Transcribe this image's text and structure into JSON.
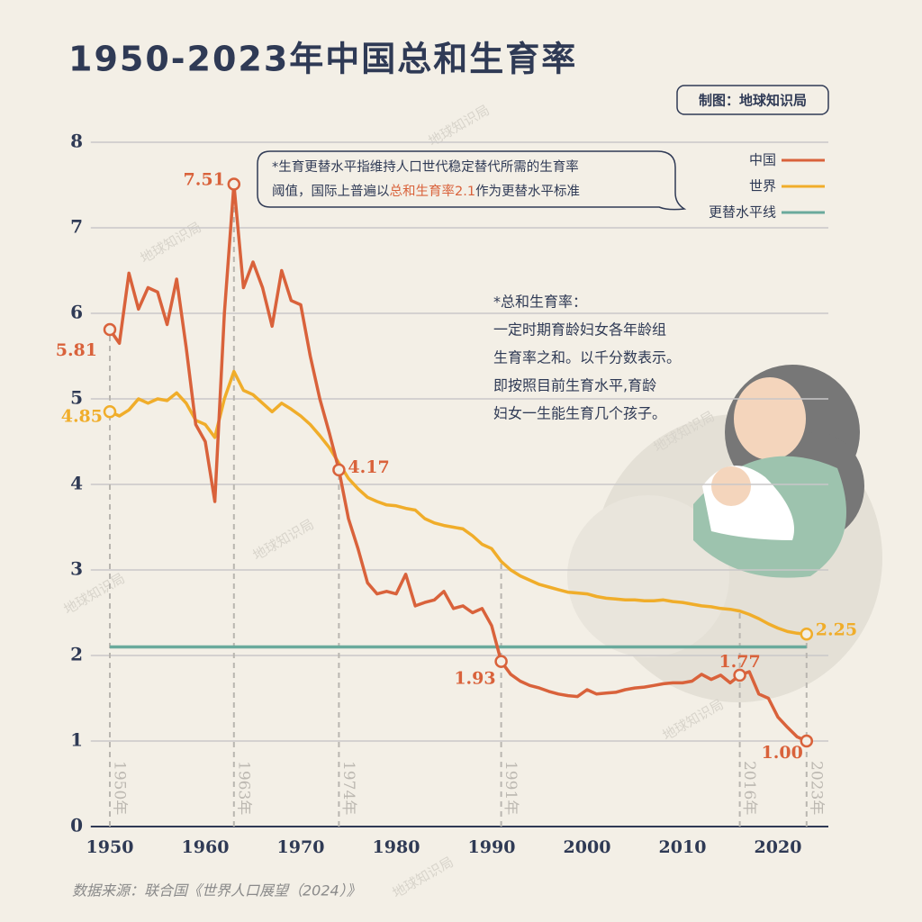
{
  "chart_data": {
    "type": "line",
    "title": "1950-2023年中国总和生育率",
    "credit": "制图：地球知识局",
    "source": "数据来源：联合国《世界人口展望（2024）》",
    "watermark": "地球知识局",
    "note": [
      "*生育更替水平指维持人口世代稳定替代所需的生育率",
      "阈值，国际上普遍以",
      "总和生育率2.1",
      "作为更替水平标准"
    ],
    "definition": [
      "*总和生育率：",
      "一定时期育龄妇女各年龄组",
      "生育率之和。以千分数表示。",
      "即按照目前生育水平,育龄",
      "妇女一生能生育几个孩子。"
    ],
    "x": [
      1950,
      1951,
      1952,
      1953,
      1954,
      1955,
      1956,
      1957,
      1958,
      1959,
      1960,
      1961,
      1962,
      1963,
      1964,
      1965,
      1966,
      1967,
      1968,
      1969,
      1970,
      1971,
      1972,
      1973,
      1974,
      1975,
      1976,
      1977,
      1978,
      1979,
      1980,
      1981,
      1982,
      1983,
      1984,
      1985,
      1986,
      1987,
      1988,
      1989,
      1990,
      1991,
      1992,
      1993,
      1994,
      1995,
      1996,
      1997,
      1998,
      1999,
      2000,
      2001,
      2002,
      2003,
      2004,
      2005,
      2006,
      2007,
      2008,
      2009,
      2010,
      2011,
      2012,
      2013,
      2014,
      2015,
      2016,
      2017,
      2018,
      2019,
      2020,
      2021,
      2022,
      2023
    ],
    "series": [
      {
        "name": "中国",
        "color": "#d9623b",
        "values": [
          5.81,
          5.65,
          6.47,
          6.05,
          6.3,
          6.25,
          5.87,
          6.4,
          5.6,
          4.7,
          4.5,
          3.8,
          6.0,
          7.51,
          6.3,
          6.6,
          6.3,
          5.85,
          6.5,
          6.15,
          6.1,
          5.5,
          5.0,
          4.6,
          4.17,
          3.6,
          3.25,
          2.85,
          2.72,
          2.75,
          2.72,
          2.95,
          2.58,
          2.62,
          2.65,
          2.75,
          2.55,
          2.58,
          2.5,
          2.55,
          2.35,
          1.93,
          1.78,
          1.7,
          1.65,
          1.62,
          1.58,
          1.55,
          1.53,
          1.52,
          1.6,
          1.55,
          1.56,
          1.57,
          1.6,
          1.62,
          1.63,
          1.65,
          1.67,
          1.68,
          1.68,
          1.7,
          1.78,
          1.72,
          1.77,
          1.68,
          1.77,
          1.81,
          1.55,
          1.5,
          1.28,
          1.16,
          1.05,
          1.0
        ],
        "value_labels": [
          "5.81",
          null,
          null,
          null,
          null,
          null,
          null,
          null,
          null,
          null,
          null,
          null,
          null,
          "7.51",
          null,
          null,
          null,
          null,
          null,
          null,
          null,
          null,
          null,
          null,
          "4.17",
          null,
          null,
          null,
          null,
          null,
          null,
          null,
          null,
          null,
          null,
          null,
          null,
          null,
          null,
          null,
          null,
          "1.93",
          null,
          null,
          null,
          null,
          null,
          null,
          null,
          null,
          null,
          null,
          null,
          null,
          null,
          null,
          null,
          null,
          null,
          null,
          null,
          null,
          null,
          null,
          null,
          null,
          "1.77",
          null,
          null,
          null,
          null,
          null,
          null,
          "1.00"
        ]
      },
      {
        "name": "世界",
        "color": "#f0ad2a",
        "values": [
          4.85,
          4.8,
          4.87,
          5.0,
          4.95,
          5.0,
          4.98,
          5.07,
          4.95,
          4.75,
          4.7,
          4.55,
          5.0,
          5.32,
          5.1,
          5.05,
          4.95,
          4.85,
          4.95,
          4.88,
          4.8,
          4.7,
          4.57,
          4.43,
          4.25,
          4.07,
          3.95,
          3.85,
          3.8,
          3.76,
          3.75,
          3.72,
          3.7,
          3.6,
          3.55,
          3.52,
          3.5,
          3.48,
          3.4,
          3.3,
          3.25,
          3.1,
          3.0,
          2.93,
          2.88,
          2.83,
          2.8,
          2.77,
          2.74,
          2.73,
          2.72,
          2.69,
          2.67,
          2.66,
          2.65,
          2.65,
          2.64,
          2.64,
          2.65,
          2.63,
          2.62,
          2.6,
          2.58,
          2.57,
          2.55,
          2.54,
          2.52,
          2.48,
          2.43,
          2.37,
          2.32,
          2.28,
          2.26,
          2.25
        ],
        "value_labels": [
          "4.85",
          null,
          null,
          null,
          null,
          null,
          null,
          null,
          null,
          null,
          null,
          null,
          null,
          null,
          null,
          null,
          null,
          null,
          null,
          null,
          null,
          null,
          null,
          null,
          null,
          null,
          null,
          null,
          null,
          null,
          null,
          null,
          null,
          null,
          null,
          null,
          null,
          null,
          null,
          null,
          null,
          null,
          null,
          null,
          null,
          null,
          null,
          null,
          null,
          null,
          null,
          null,
          null,
          null,
          null,
          null,
          null,
          null,
          null,
          null,
          null,
          null,
          null,
          null,
          null,
          null,
          null,
          null,
          null,
          null,
          null,
          null,
          null,
          "2.25"
        ]
      }
    ],
    "reference_line": {
      "name": "更替水平线",
      "value": 2.1,
      "color": "#6aaa9c"
    },
    "year_markers": [
      {
        "value": 1950,
        "label": "1950年"
      },
      {
        "value": 1963,
        "label": "1963年"
      },
      {
        "value": 1974,
        "label": "1974年"
      },
      {
        "value": 1991,
        "label": "1991年"
      },
      {
        "value": 2016,
        "label": "2016年"
      },
      {
        "value": 2023,
        "label": "2023年"
      }
    ],
    "xlim": [
      1948,
      2025
    ],
    "xticks": [
      1950,
      1960,
      1970,
      1980,
      1990,
      2000,
      2010,
      2020
    ],
    "ylim": [
      0,
      8
    ],
    "yticks": [
      0,
      1,
      2,
      3,
      4,
      5,
      6,
      7,
      8
    ],
    "grid": true,
    "legend": "upper right"
  }
}
